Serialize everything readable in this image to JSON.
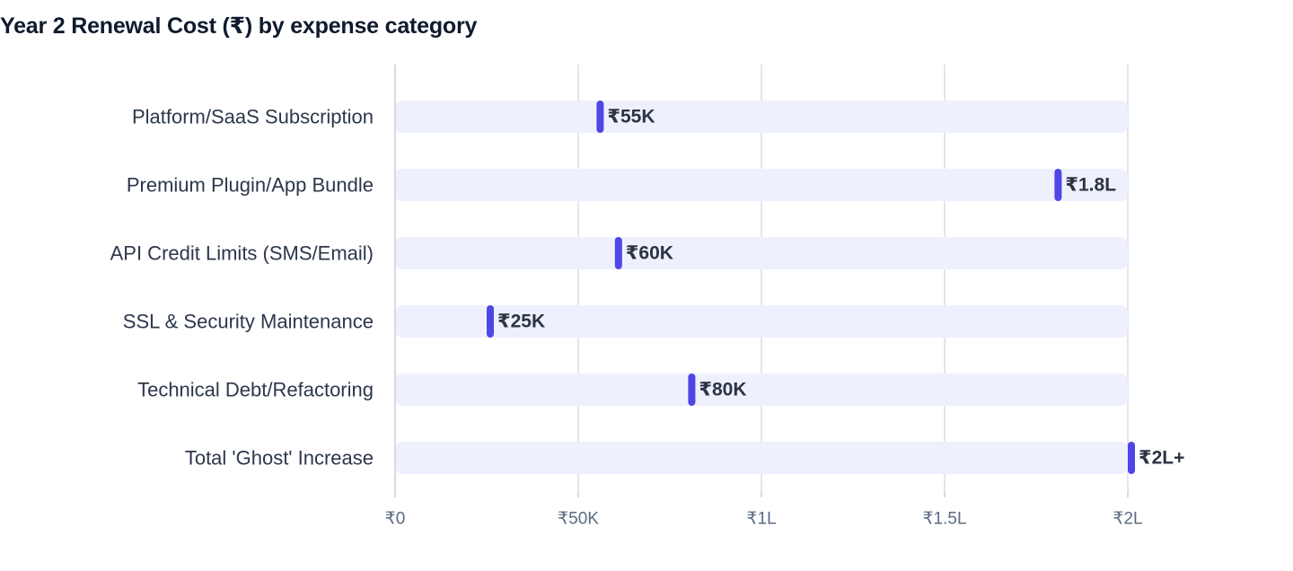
{
  "chart_data": {
    "type": "bar",
    "title": "Year 2 Renewal Cost (₹) by expense category",
    "xlabel": "",
    "ylabel": "",
    "xlim": [
      0,
      200000
    ],
    "grid": true,
    "x_ticks": [
      {
        "value": 0,
        "label": "₹0"
      },
      {
        "value": 50000,
        "label": "₹50K"
      },
      {
        "value": 100000,
        "label": "₹1L"
      },
      {
        "value": 150000,
        "label": "₹1.5L"
      },
      {
        "value": 200000,
        "label": "₹2L"
      }
    ],
    "categories": [
      "Platform/SaaS Subscription",
      "Premium Plugin/App Bundle",
      "API Credit Limits (SMS/Email)",
      "SSL & Security Maintenance",
      "Technical Debt/Refactoring",
      "Total 'Ghost' Increase"
    ],
    "values": [
      55000,
      180000,
      60000,
      25000,
      80000,
      200000
    ],
    "value_labels": [
      "₹55K",
      "₹1.8L",
      "₹60K",
      "₹25K",
      "₹80K",
      "₹2L+"
    ],
    "colors": {
      "marker": "#4f46e5",
      "track": "#eef0fd",
      "grid": "#e3e6ec",
      "axis": "#d6dae2"
    }
  }
}
